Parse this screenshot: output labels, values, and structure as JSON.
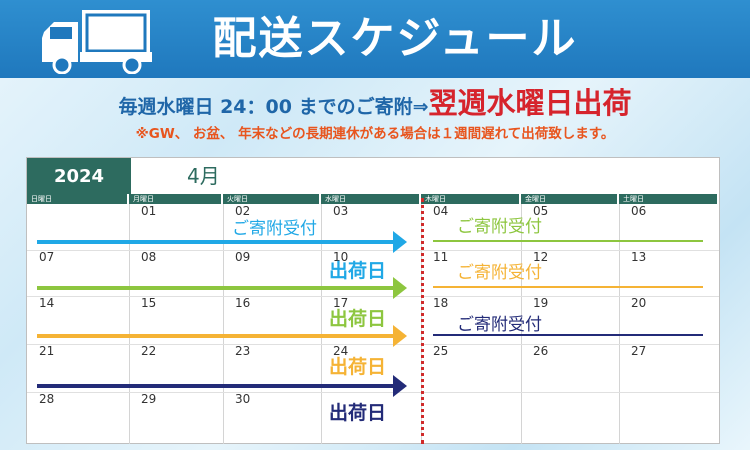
{
  "banner": {
    "title": "配送スケジュール"
  },
  "notice": {
    "lead": "毎週水曜日 24：00 までのご寄附⇒",
    "emphasis": "翌週水曜日出荷",
    "note": "※GW、 お盆、 年末などの長期連休がある場合は１週間遅れて出荷致します。"
  },
  "calendar": {
    "year": "2024",
    "month": "4月",
    "weekdays": [
      "日曜日",
      "月曜日",
      "火曜日",
      "水曜日",
      "木曜日",
      "金曜日",
      "土曜日"
    ],
    "weeks": [
      [
        "",
        "01",
        "02",
        "03",
        "04",
        "05",
        "06"
      ],
      [
        "07",
        "08",
        "09",
        "10",
        "11",
        "12",
        "13"
      ],
      [
        "14",
        "15",
        "16",
        "17",
        "18",
        "19",
        "20"
      ],
      [
        "21",
        "22",
        "23",
        "24",
        "25",
        "26",
        "27"
      ],
      [
        "28",
        "29",
        "30",
        "",
        "",
        "",
        ""
      ]
    ]
  },
  "legend": {
    "receive_label": "ご寄附受付",
    "ship_label": "出荷日"
  },
  "colors": {
    "week1": "#20a8e6",
    "week2": "#8dc63f",
    "week3": "#f5b335",
    "week4": "#232b78",
    "calendar_header": "#2d6b5f",
    "banner": "#1f78bd",
    "emphasis": "#d6242c"
  }
}
